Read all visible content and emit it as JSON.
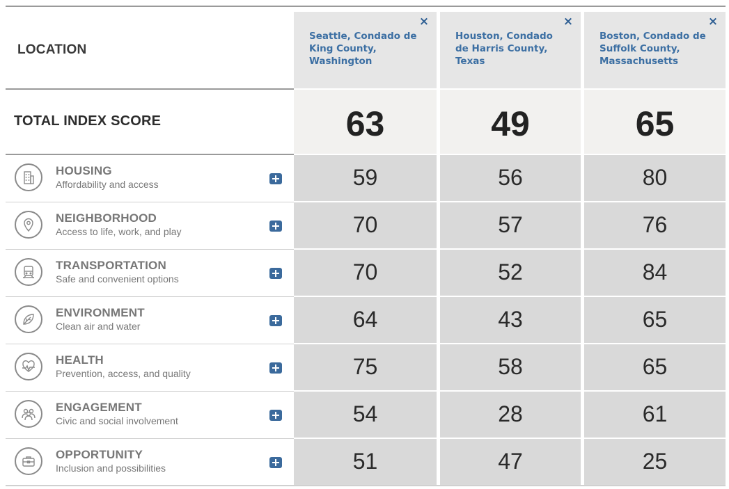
{
  "header": {
    "location_label": "LOCATION",
    "close_glyph": "×"
  },
  "locations": [
    {
      "name": "Seattle, Condado de King County, Washington",
      "total": "63"
    },
    {
      "name": "Houston, Condado de Harris County, Texas",
      "total": "49"
    },
    {
      "name": "Boston, Condado de Suffolk County, Massachusetts",
      "total": "65"
    }
  ],
  "total_label": "TOTAL INDEX SCORE",
  "categories": [
    {
      "title": "HOUSING",
      "subtitle": "Affordability and access",
      "icon": "building-icon",
      "scores": [
        "59",
        "56",
        "80"
      ]
    },
    {
      "title": "NEIGHBORHOOD",
      "subtitle": "Access to life, work, and play",
      "icon": "map-pin-icon",
      "scores": [
        "70",
        "57",
        "76"
      ]
    },
    {
      "title": "TRANSPORTATION",
      "subtitle": "Safe and convenient options",
      "icon": "train-icon",
      "scores": [
        "70",
        "52",
        "84"
      ]
    },
    {
      "title": "ENVIRONMENT",
      "subtitle": "Clean air and water",
      "icon": "leaf-icon",
      "scores": [
        "64",
        "43",
        "65"
      ]
    },
    {
      "title": "HEALTH",
      "subtitle": "Prevention, access, and quality",
      "icon": "heart-pulse-icon",
      "scores": [
        "75",
        "58",
        "65"
      ]
    },
    {
      "title": "ENGAGEMENT",
      "subtitle": "Civic and social involvement",
      "icon": "people-icon",
      "scores": [
        "54",
        "28",
        "61"
      ]
    },
    {
      "title": "OPPORTUNITY",
      "subtitle": "Inclusion and possibilities",
      "icon": "briefcase-icon",
      "scores": [
        "51",
        "47",
        "25"
      ]
    }
  ],
  "colors": {
    "location_text": "#3c6fa3",
    "expand_button": "#3b6a9c",
    "header_bg": "#e6e6e6",
    "total_bg": "#f2f1ef",
    "score_bg": "#d9d9d9"
  }
}
